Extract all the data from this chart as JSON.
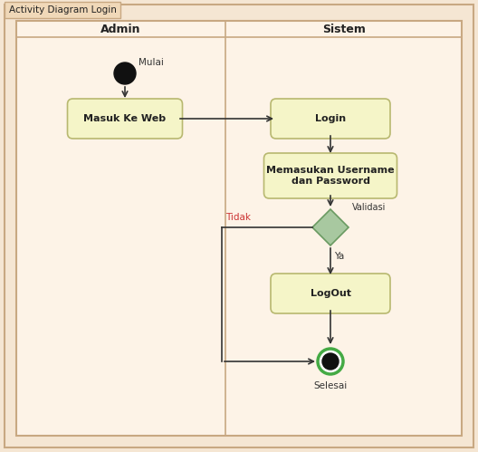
{
  "title": "Activity Diagram Login",
  "bg_outer": "#f5e6d3",
  "bg_inner": "#fdf3e7",
  "border_color": "#c8a882",
  "swimlane_divider": 0.47,
  "lane_headers": [
    "Admin",
    "Sistem"
  ],
  "node_fill": "#f5f5c8",
  "node_edge": "#b8b870",
  "diamond_fill": "#a8c8a0",
  "diamond_edge": "#6a9a62",
  "start_color": "#111111",
  "end_outer": "#44aa44",
  "end_inner": "#111111",
  "arrow_color": "#333333",
  "label_color": "#333333",
  "tidak_color": "#cc3333",
  "nodes": {
    "mulai_label": "Mulai",
    "masuk": "Masuk Ke Web",
    "login": "Login",
    "memasukan": "Memasukan Username\ndan Password",
    "validasi": "Validasi",
    "logout": "LogOut",
    "selesai": "Selesai",
    "tidak": "Tidak",
    "ya": "Ya"
  }
}
